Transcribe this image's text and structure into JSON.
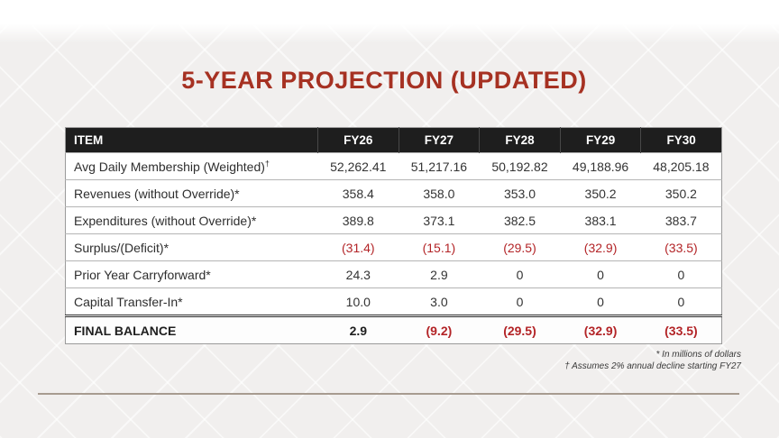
{
  "slide": {
    "title": "5-YEAR PROJECTION (UPDATED)"
  },
  "table": {
    "headers": [
      "ITEM",
      "FY26",
      "FY27",
      "FY28",
      "FY29",
      "FY30"
    ],
    "rows": [
      {
        "label": "Avg Daily Membership (Weighted)",
        "sup": "†",
        "values": [
          "52,262.41",
          "51,217.16",
          "50,192.82",
          "49,188.96",
          "48,205.18"
        ]
      },
      {
        "label": "Revenues (without Override)*",
        "values": [
          "358.4",
          "358.0",
          "353.0",
          "350.2",
          "350.2"
        ]
      },
      {
        "label": "Expenditures (without Override)*",
        "values": [
          "389.8",
          "373.1",
          "382.5",
          "383.1",
          "383.7"
        ]
      },
      {
        "label": "Surplus/(Deficit)*",
        "values": [
          "(31.4)",
          "(15.1)",
          "(29.5)",
          "(32.9)",
          "(33.5)"
        ]
      },
      {
        "label": "Prior Year Carryforward*",
        "values": [
          "24.3",
          "2.9",
          "0",
          "0",
          "0"
        ]
      },
      {
        "label": "Capital Transfer-In*",
        "values": [
          "10.0",
          "3.0",
          "0",
          "0",
          "0"
        ]
      },
      {
        "label": "FINAL BALANCE",
        "values": [
          "2.9",
          "(9.2)",
          "(29.5)",
          "(32.9)",
          "(33.5)"
        ]
      }
    ]
  },
  "footnotes": [
    "* In millions of dollars",
    "† Assumes 2% annual decline starting FY27"
  ],
  "colors": {
    "title_red": "#a63122",
    "negative_red": "#b32427",
    "header_bg": "#1e1e1e",
    "divider_tan": "#a79b90"
  }
}
